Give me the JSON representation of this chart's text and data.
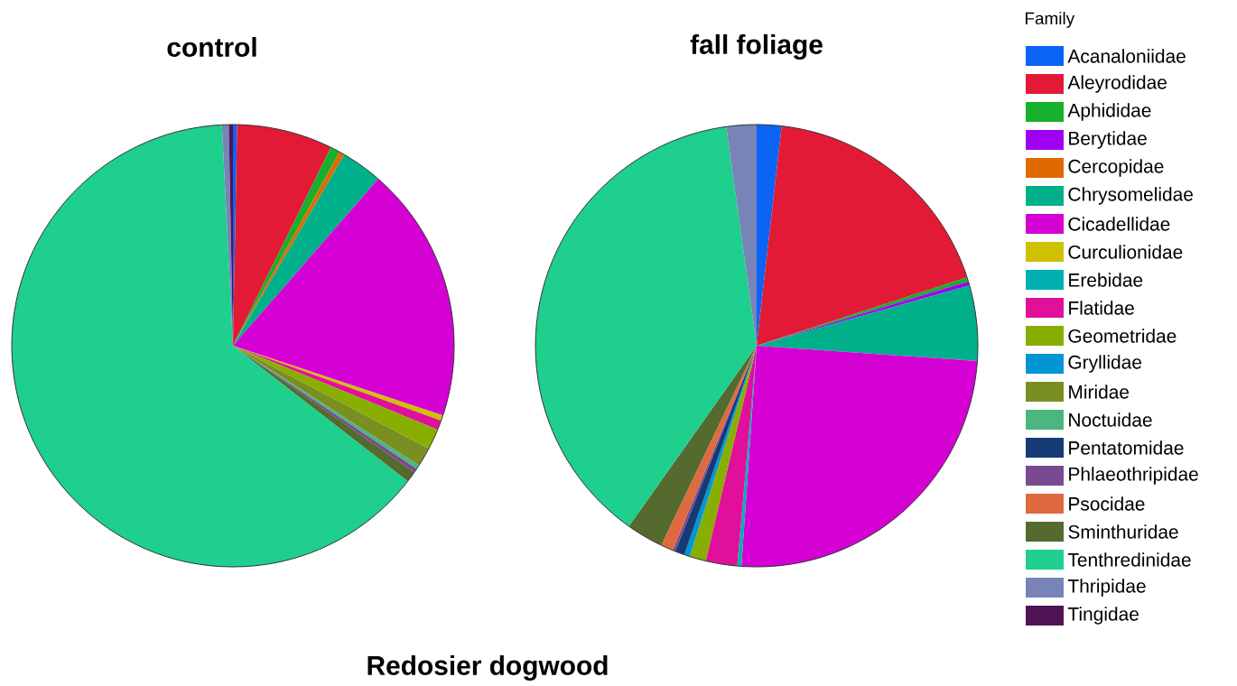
{
  "chart_data": [
    {
      "type": "pie",
      "title": "control",
      "legend": false,
      "categories": [
        null,
        null,
        null,
        null,
        null,
        null,
        null,
        null,
        null,
        null,
        null,
        null,
        null,
        null,
        null,
        null,
        null,
        null,
        null,
        null,
        null
      ],
      "values": [
        0.3,
        7.0,
        0.7,
        0,
        0.4,
        3.0,
        18.7,
        0.4,
        0,
        0.7,
        1.5,
        0,
        1.4,
        0.3,
        0,
        0.3,
        0,
        0.8,
        63.7,
        0.5,
        0.3
      ],
      "colors": [
        "#0a64f5",
        "#e31a35",
        "#16b02c",
        "#a000f0",
        "#e06a00",
        "#00b08a",
        "#d400d4",
        "#cfc000",
        "#00b0b0",
        "#e0109a",
        "#88ae00",
        "#0096d6",
        "#7a8f22",
        "#4cb680",
        "#163a74",
        "#7a4a90",
        "#e06a40",
        "#546a2e",
        "#1ecf8d",
        "#7884b8",
        "#501456"
      ],
      "annotations": [
        "Redosier dogwood"
      ]
    },
    {
      "type": "pie",
      "title": "fall foliage",
      "legend": "right",
      "legend_title": "Family",
      "categories": [
        "Acanaloniidae",
        "Aleyrodidae",
        "Aphididae",
        "Berytidae",
        "Cercopidae",
        "Chrysomelidae",
        "Cicadellidae",
        "Curculionidae",
        "Erebidae",
        "Flatidae",
        "Geometridae",
        "Gryllidae",
        "Miridae",
        "Noctuidae",
        "Pentatomidae",
        "Phlaeothripidae",
        "Psocidae",
        "Sminthuridae",
        "Tenthredinidae",
        "Thripidae",
        "Tingidae"
      ],
      "values": [
        1.8,
        18.2,
        0.3,
        0.3,
        0,
        5.5,
        25.0,
        0,
        0.3,
        2.3,
        1.2,
        0.4,
        0,
        0,
        0.7,
        0.2,
        0.9,
        2.7,
        38.0,
        2.2,
        0
      ],
      "colors": [
        "#0a64f5",
        "#e31a35",
        "#16b02c",
        "#a000f0",
        "#e06a00",
        "#00b08a",
        "#d400d4",
        "#cfc000",
        "#00b0b0",
        "#e0109a",
        "#88ae00",
        "#0096d6",
        "#7a8f22",
        "#4cb680",
        "#163a74",
        "#7a4a90",
        "#e06a40",
        "#546a2e",
        "#1ecf8d",
        "#7884b8",
        "#501456"
      ]
    }
  ]
}
